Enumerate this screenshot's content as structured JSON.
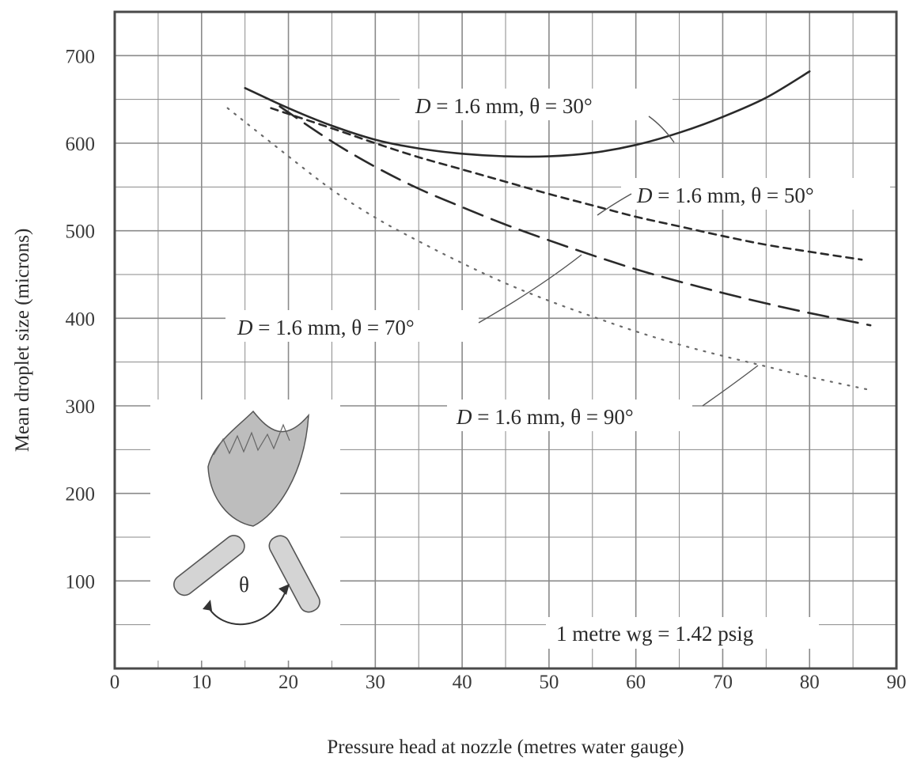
{
  "chart_data": {
    "type": "line",
    "xlabel": "Pressure head at nozzle (metres water gauge)",
    "ylabel": "Mean droplet size (microns)",
    "xlim": [
      0,
      90
    ],
    "ylim": [
      0,
      750
    ],
    "xticks": [
      "0",
      "10",
      "20",
      "30",
      "40",
      "50",
      "60",
      "70",
      "80",
      "90"
    ],
    "yticks": [
      "100",
      "200",
      "300",
      "400",
      "500",
      "600",
      "700"
    ],
    "grid": true,
    "series": [
      {
        "name": "D = 1.6 mm, θ = 30°",
        "style": "solid",
        "x": [
          15,
          20,
          25,
          30,
          35,
          40,
          45,
          50,
          55,
          60,
          65,
          70,
          75,
          80
        ],
        "y": [
          663,
          640,
          620,
          604,
          594,
          588,
          585,
          585,
          589,
          598,
          612,
          630,
          652,
          682
        ]
      },
      {
        "name": "D = 1.6 mm, θ = 50°",
        "style": "short-dash",
        "x": [
          18,
          25,
          30,
          35,
          40,
          45,
          50,
          55,
          60,
          65,
          70,
          75,
          80,
          86
        ],
        "y": [
          640,
          617,
          600,
          584,
          570,
          556,
          542,
          529,
          516,
          505,
          494,
          484,
          476,
          467
        ]
      },
      {
        "name": "D = 1.6 mm, θ = 70°",
        "style": "long-dash",
        "x": [
          19,
          25,
          30,
          35,
          40,
          45,
          50,
          55,
          60,
          65,
          70,
          75,
          80,
          87
        ],
        "y": [
          642,
          602,
          573,
          548,
          527,
          507,
          489,
          472,
          456,
          442,
          429,
          417,
          406,
          392
        ]
      },
      {
        "name": "D = 1.6 mm, θ = 90°",
        "style": "dotted",
        "x": [
          13,
          20,
          25,
          30,
          35,
          40,
          45,
          50,
          55,
          60,
          65,
          70,
          75,
          80,
          87
        ],
        "y": [
          640,
          585,
          547,
          515,
          488,
          463,
          440,
          420,
          402,
          385,
          370,
          357,
          345,
          333,
          318
        ]
      }
    ],
    "annotations": {
      "a30": [
        "D",
        " = 1.6 mm, θ = 30°"
      ],
      "a50": [
        "D",
        " = 1.6 mm, θ = 50°"
      ],
      "a70": [
        "D",
        " = 1.6 mm, θ = 70°"
      ],
      "a90": [
        "D",
        " = 1.6 mm, θ = 90°"
      ],
      "conversion": "1 metre wg = 1.42 psig",
      "inset_angle": "θ"
    }
  }
}
